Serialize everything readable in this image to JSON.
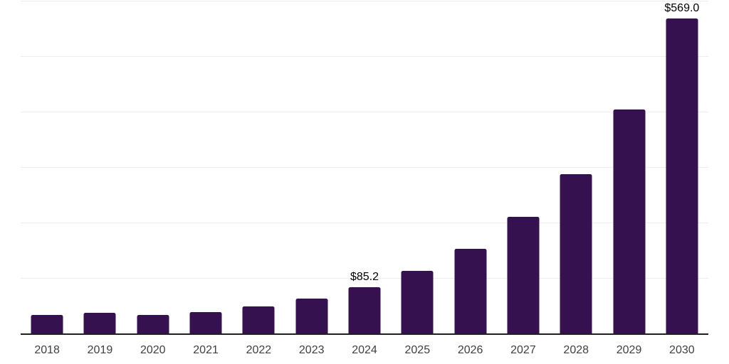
{
  "chart_data": {
    "type": "bar",
    "title": "",
    "xlabel": "",
    "ylabel": "",
    "categories": [
      "2018",
      "2019",
      "2020",
      "2021",
      "2022",
      "2023",
      "2024",
      "2025",
      "2026",
      "2027",
      "2028",
      "2029",
      "2030"
    ],
    "values": [
      34.5,
      38.5,
      34.0,
      39.5,
      50.0,
      63.5,
      85.2,
      114.0,
      154.0,
      211.5,
      288.5,
      405.0,
      569.0
    ],
    "data_labels": [
      {
        "category": "2024",
        "index": 6,
        "text": "$85.2"
      },
      {
        "category": "2030",
        "index": 12,
        "text": "$569.0"
      }
    ],
    "ylim": [
      0,
      600
    ],
    "y_gridline_step": 100,
    "y_axis_tick_labels_visible": false,
    "grid": "horizontal",
    "legend_position": "none",
    "colors": {
      "bar": "#361150",
      "axis_line": "#1f1f1f",
      "gridline": "#ededed",
      "tick_label": "#404040",
      "data_label": "#000000",
      "background": "#ffffff"
    }
  }
}
